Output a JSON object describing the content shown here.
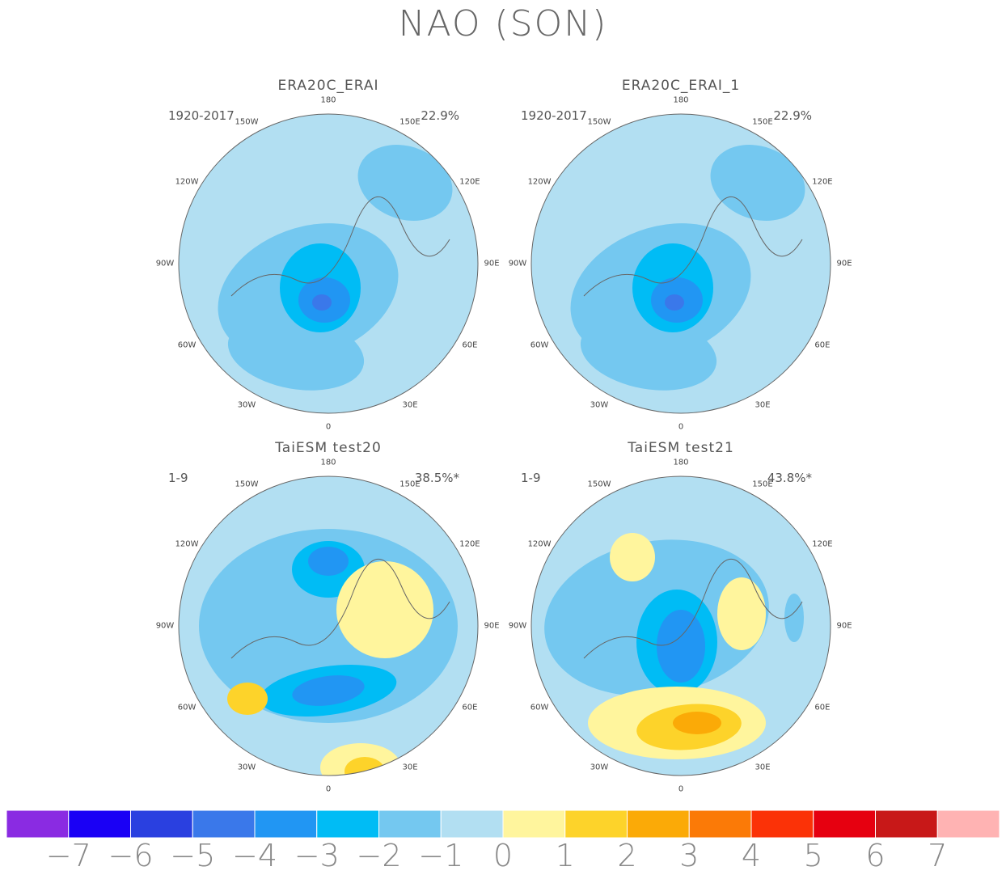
{
  "title": "NAO (SON)",
  "chart_data": {
    "type": "heatmap",
    "projection": "north polar stereographic",
    "panels": [
      {
        "title": "ERA20C_ERAI",
        "period": "1920-2017",
        "explained_variance": "22.9%",
        "min_value": -4
      },
      {
        "title": "ERA20C_ERAI_1",
        "period": "1920-2017",
        "explained_variance": "22.9%",
        "min_value": -4
      },
      {
        "title": "TaiESM test20",
        "period": "1-9",
        "explained_variance": "38.5%*",
        "min_value": -3
      },
      {
        "title": "TaiESM test21",
        "period": "1-9",
        "explained_variance": "43.8%*",
        "min_value": -4
      }
    ],
    "longitude_labels": [
      "180",
      "150E",
      "120E",
      "90E",
      "60E",
      "30E",
      "0",
      "30W",
      "60W",
      "90W",
      "120W",
      "150W"
    ],
    "colorbar": {
      "ticks": [
        "-7",
        "-6",
        "-5",
        "-4",
        "-3",
        "-2",
        "-1",
        "0",
        "1",
        "2",
        "3",
        "4",
        "5",
        "6",
        "7"
      ],
      "colors": [
        "#8a2be2",
        "#1a00f5",
        "#2a40e0",
        "#3a78ea",
        "#2196f3",
        "#00bcf5",
        "#74c8f0",
        "#b2dff2",
        "#fff59d",
        "#fdd32a",
        "#fbaa07",
        "#fb7a07",
        "#fb3207",
        "#e60010",
        "#c81818",
        "#ffb3b3"
      ]
    }
  }
}
